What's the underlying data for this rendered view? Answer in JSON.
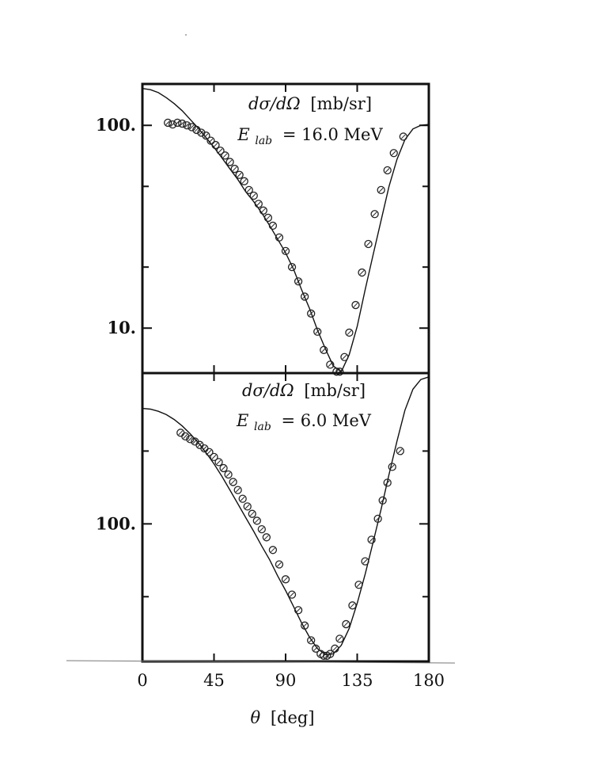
{
  "chart_data": [
    {
      "type": "scatter",
      "scale": "log",
      "xlim": [
        0,
        180
      ],
      "ylim": [
        6.0,
        160.0
      ],
      "yticks": [
        {
          "value": 10,
          "label": "10."
        },
        {
          "value": 100,
          "label": "100."
        }
      ],
      "annotation": {
        "line1_var": "dσ/dΩ",
        "line1_unit": "[mb/sr]",
        "line2_var": "E",
        "line2_sub": "lab",
        "line2_val": "= 16.0 MeV"
      },
      "series": [
        {
          "kind": "points",
          "x": [
            16,
            19,
            22,
            25,
            28,
            31,
            34,
            37,
            40,
            43,
            46,
            49,
            52,
            55,
            58,
            61,
            64,
            67,
            70,
            73,
            76,
            79,
            82,
            86,
            90,
            94,
            98,
            102,
            106,
            110,
            114,
            118,
            122,
            124,
            127,
            130,
            134,
            138,
            142,
            146,
            150,
            154,
            158,
            164
          ],
          "y": [
            103,
            101,
            103,
            102,
            100,
            98,
            95,
            92,
            89,
            84,
            80,
            75,
            71,
            66,
            61,
            57,
            53,
            48,
            45,
            41,
            38,
            35,
            32,
            28,
            24,
            20,
            17,
            14.3,
            11.8,
            9.6,
            7.8,
            6.6,
            6.1,
            6.1,
            7.2,
            9.5,
            13.0,
            18.8,
            26.0,
            36.5,
            48.0,
            60.0,
            73.0,
            88.0
          ]
        },
        {
          "kind": "curve",
          "x": [
            0,
            5,
            10,
            15,
            20,
            25,
            30,
            35,
            40,
            45,
            50,
            55,
            60,
            65,
            70,
            75,
            80,
            85,
            90,
            95,
            100,
            105,
            110,
            115,
            120,
            125,
            130,
            135,
            140,
            145,
            150,
            155,
            160,
            165,
            170,
            175,
            180
          ],
          "y": [
            152,
            150,
            145,
            137,
            128,
            118,
            107,
            97,
            87,
            78,
            69,
            61,
            54,
            47,
            42,
            37,
            32,
            27.5,
            23.5,
            19.5,
            15.5,
            12.5,
            9.8,
            7.9,
            6.5,
            6.1,
            7.4,
            10.2,
            15.5,
            23,
            34,
            50,
            68,
            85,
            96,
            100,
            101
          ]
        }
      ]
    },
    {
      "type": "scatter",
      "scale": "log",
      "xlim": [
        0,
        180
      ],
      "ylim": [
        27.0,
        420.0
      ],
      "yticks": [
        {
          "value": 100,
          "label": "100."
        }
      ],
      "xticks": [
        {
          "value": 0,
          "label": "0"
        },
        {
          "value": 45,
          "label": "45"
        },
        {
          "value": 90,
          "label": "90"
        },
        {
          "value": 135,
          "label": "135"
        },
        {
          "value": 180,
          "label": "180"
        }
      ],
      "xlabel_var": "θ",
      "xlabel_unit": "[deg]",
      "annotation": {
        "line1_var": "dσ/dΩ",
        "line1_unit": "[mb/sr]",
        "line2_var": "E",
        "line2_sub": "lab",
        "line2_val": "= 6.0 MeV"
      },
      "series": [
        {
          "kind": "points",
          "x": [
            24,
            27,
            30,
            33,
            36,
            39,
            42,
            45,
            48,
            51,
            54,
            57,
            60,
            63,
            66,
            69,
            72,
            75,
            78,
            82,
            86,
            90,
            94,
            98,
            102,
            106,
            109,
            112,
            114,
            116,
            118,
            121,
            124,
            128,
            132,
            136,
            140,
            144,
            148,
            151,
            154,
            157,
            162
          ],
          "y": [
            238,
            230,
            224,
            219,
            212,
            205,
            198,
            189,
            180,
            170,
            160,
            149,
            138,
            127,
            118,
            110,
            103,
            95,
            88,
            78,
            68,
            59,
            51,
            44,
            38,
            33,
            30.5,
            29,
            28.5,
            28.5,
            29,
            30.5,
            33.5,
            38.5,
            46,
            56,
            70,
            86,
            105,
            125,
            148,
            172,
            200
          ]
        },
        {
          "kind": "curve",
          "x": [
            0,
            5,
            10,
            15,
            20,
            25,
            30,
            35,
            40,
            45,
            50,
            55,
            60,
            65,
            70,
            75,
            80,
            85,
            90,
            95,
            100,
            105,
            110,
            115,
            120,
            125,
            130,
            135,
            140,
            145,
            150,
            155,
            160,
            165,
            170,
            175,
            180
          ],
          "y": [
            300,
            298,
            292,
            283,
            270,
            254,
            236,
            217,
            197,
            177,
            157,
            138,
            121,
            106,
            93,
            81,
            71,
            61,
            53,
            45.5,
            39,
            34,
            30.5,
            28.8,
            29,
            31.5,
            37,
            47,
            62,
            84,
            115,
            160,
            220,
            295,
            360,
            395,
            405
          ]
        }
      ]
    }
  ]
}
